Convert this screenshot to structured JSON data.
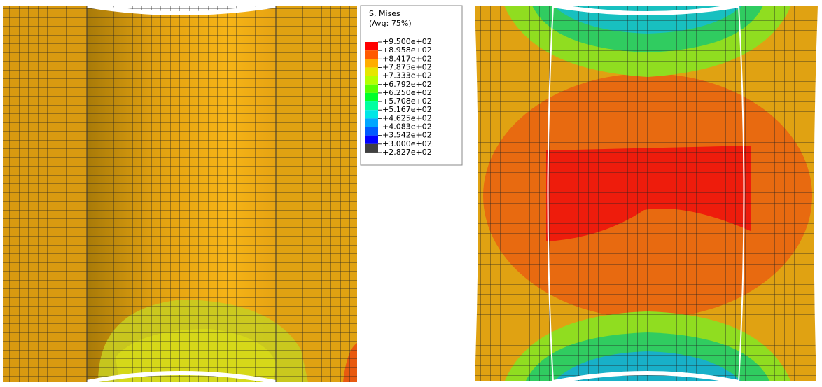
{
  "legend": {
    "title": "S, Mises",
    "subtitle": "(Avg: 75%)",
    "labels": [
      "+9.500e+02",
      "+8.958e+02",
      "+8.417e+02",
      "+7.875e+02",
      "+7.333e+02",
      "+6.792e+02",
      "+6.250e+02",
      "+5.708e+02",
      "+5.167e+02",
      "+4.625e+02",
      "+4.083e+02",
      "+3.542e+02",
      "+3.000e+02",
      "+2.827e+02"
    ],
    "colors": [
      "#ff0000",
      "#ff5a00",
      "#ffad00",
      "#e6e600",
      "#b4ff00",
      "#5aff00",
      "#00ff2a",
      "#00ffa0",
      "#00e6e6",
      "#00a6ff",
      "#005aff",
      "#0000ff",
      "#404040"
    ]
  }
}
